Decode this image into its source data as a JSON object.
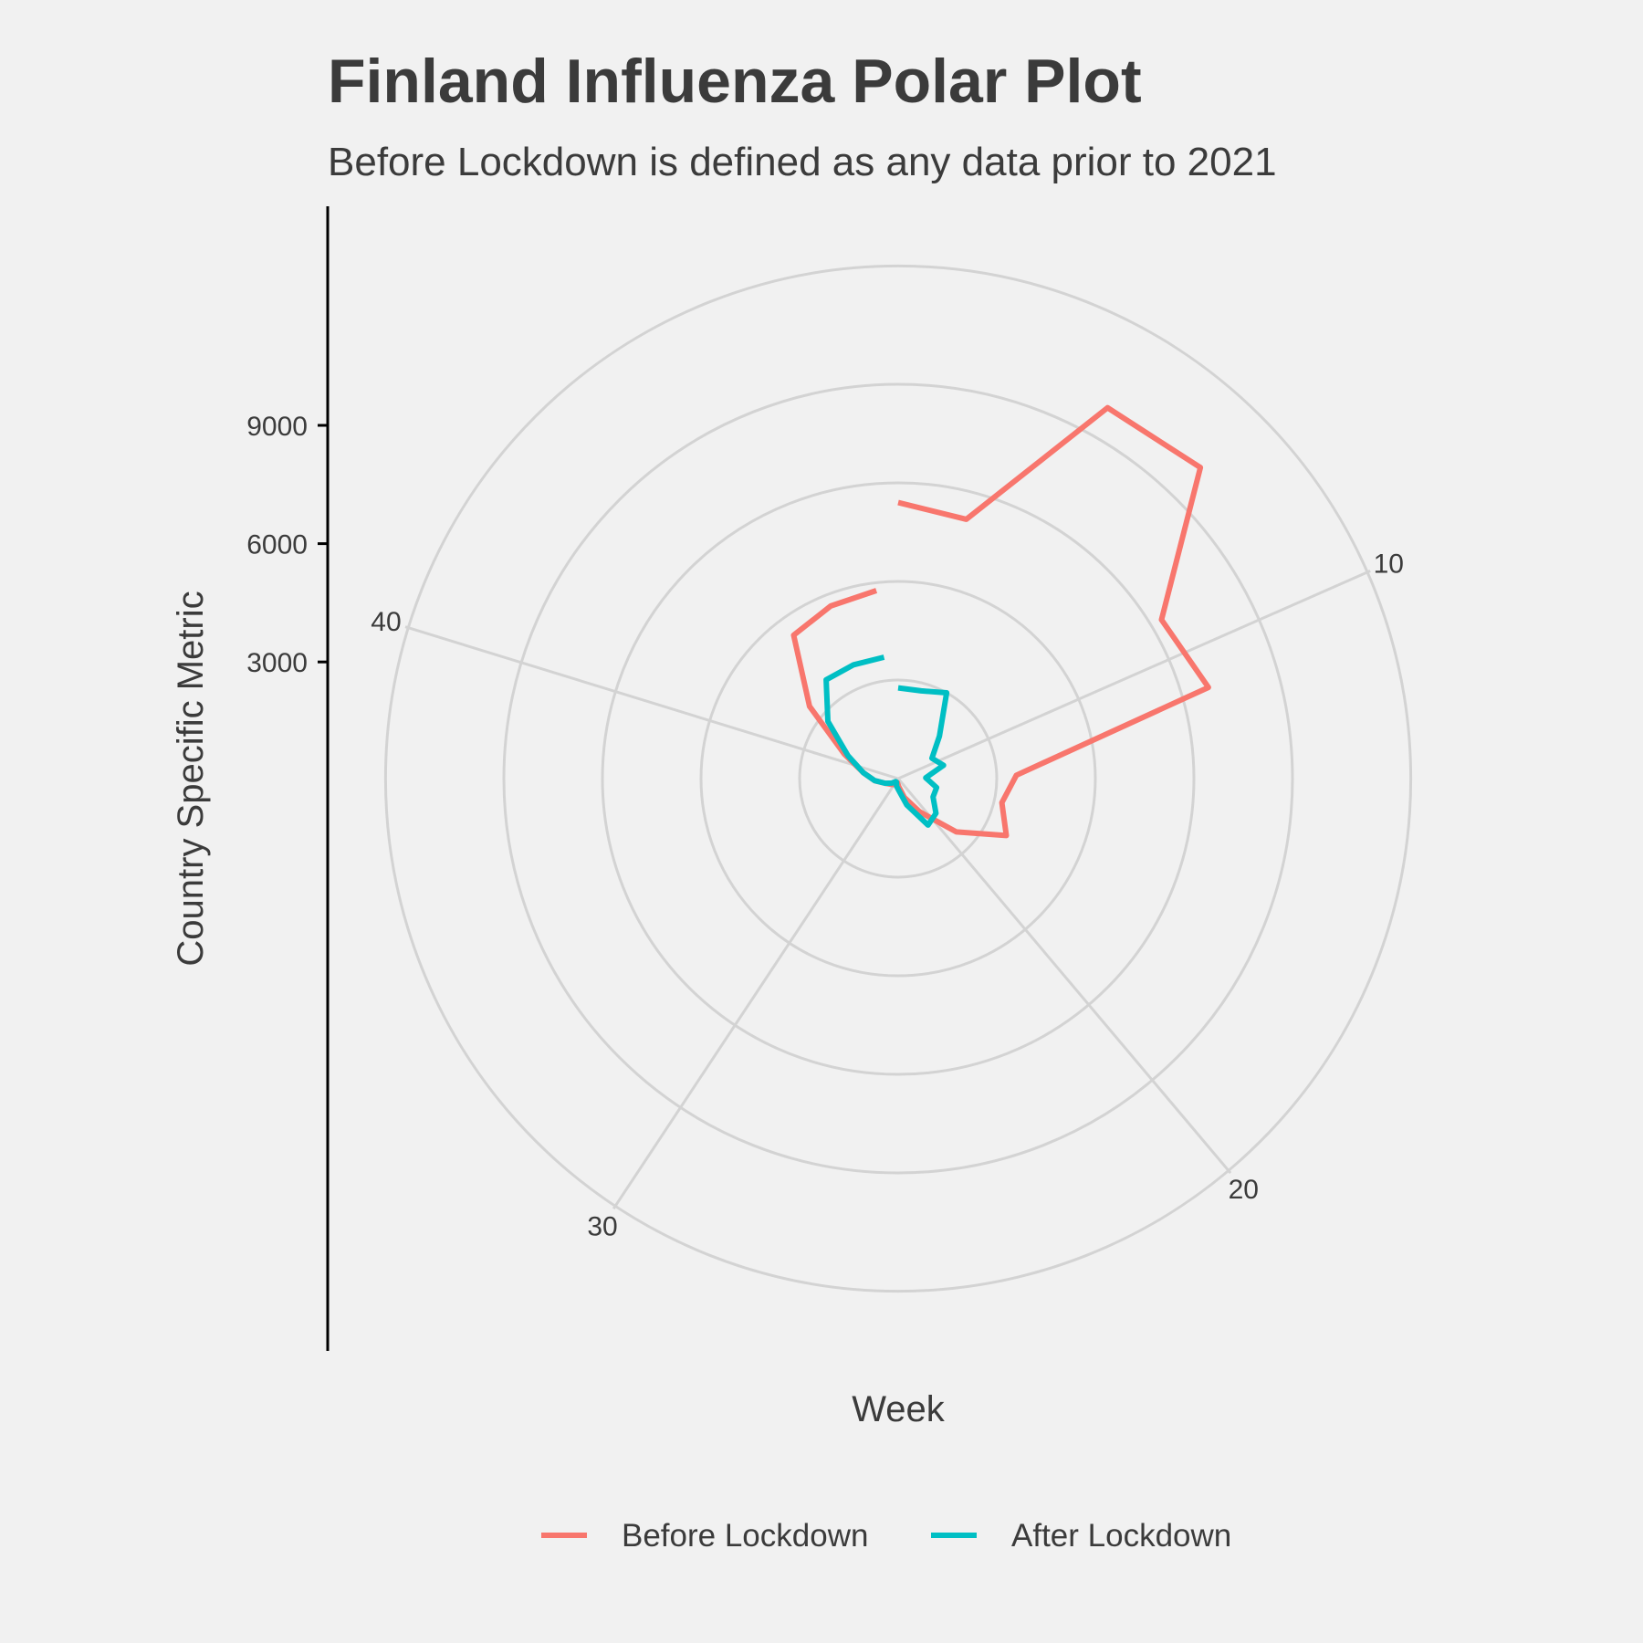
{
  "chart_data": {
    "type": "line",
    "coord": "polar",
    "title": "Finland Influenza Polar Plot",
    "subtitle": "Before Lockdown is defined as any data prior to 2021",
    "xlabel": "Week",
    "ylabel": "Country Specific Metric",
    "x_ticks": [
      "10",
      "20",
      "30",
      "40"
    ],
    "y_ticks": [
      "3000",
      "6000",
      "9000"
    ],
    "grid": true,
    "legend_position": "bottom",
    "series": [
      {
        "name": "Before Lockdown",
        "color": "#f8766d",
        "points": [
          {
            "week": 1,
            "value": 7000
          },
          {
            "week": 3,
            "value": 6800
          },
          {
            "week": 5,
            "value": 10800
          },
          {
            "week": 7,
            "value": 11000
          },
          {
            "week": 9,
            "value": 7800
          },
          {
            "week": 11,
            "value": 8200
          },
          {
            "week": 13,
            "value": 3000
          },
          {
            "week": 15,
            "value": 2700
          },
          {
            "week": 17,
            "value": 3100
          },
          {
            "week": 19,
            "value": 2000
          },
          {
            "week": 21,
            "value": 1000
          },
          {
            "week": 23,
            "value": 500
          },
          {
            "week": 25,
            "value": 200
          },
          {
            "week": 27,
            "value": 100
          },
          {
            "week": 29,
            "value": 100
          },
          {
            "week": 31,
            "value": 200
          },
          {
            "week": 33,
            "value": 250
          },
          {
            "week": 35,
            "value": 350
          },
          {
            "week": 37,
            "value": 600
          },
          {
            "week": 39,
            "value": 900
          },
          {
            "week": 41,
            "value": 1500
          },
          {
            "week": 43,
            "value": 2900
          },
          {
            "week": 45,
            "value": 4500
          },
          {
            "week": 47,
            "value": 4700
          },
          {
            "week": 49,
            "value": 4800
          }
        ]
      },
      {
        "name": "After Lockdown",
        "color": "#00bfc4",
        "points": [
          {
            "week": 1,
            "value": 2300
          },
          {
            "week": 3,
            "value": 2300
          },
          {
            "week": 5,
            "value": 2500
          },
          {
            "week": 7,
            "value": 1500
          },
          {
            "week": 9,
            "value": 1000
          },
          {
            "week": 11,
            "value": 1200
          },
          {
            "week": 13,
            "value": 700
          },
          {
            "week": 15,
            "value": 1000
          },
          {
            "week": 17,
            "value": 1000
          },
          {
            "week": 19,
            "value": 1300
          },
          {
            "week": 21,
            "value": 1400
          },
          {
            "week": 23,
            "value": 700
          },
          {
            "week": 25,
            "value": 300
          },
          {
            "week": 27,
            "value": 200
          },
          {
            "week": 29,
            "value": 100
          },
          {
            "week": 31,
            "value": 100
          },
          {
            "week": 33,
            "value": 200
          },
          {
            "week": 35,
            "value": 350
          },
          {
            "week": 37,
            "value": 600
          },
          {
            "week": 39,
            "value": 900
          },
          {
            "week": 41,
            "value": 1400
          },
          {
            "week": 43,
            "value": 2300
          },
          {
            "week": 45,
            "value": 3100
          },
          {
            "week": 47,
            "value": 3100
          },
          {
            "week": 49,
            "value": 3100
          }
        ]
      }
    ]
  }
}
